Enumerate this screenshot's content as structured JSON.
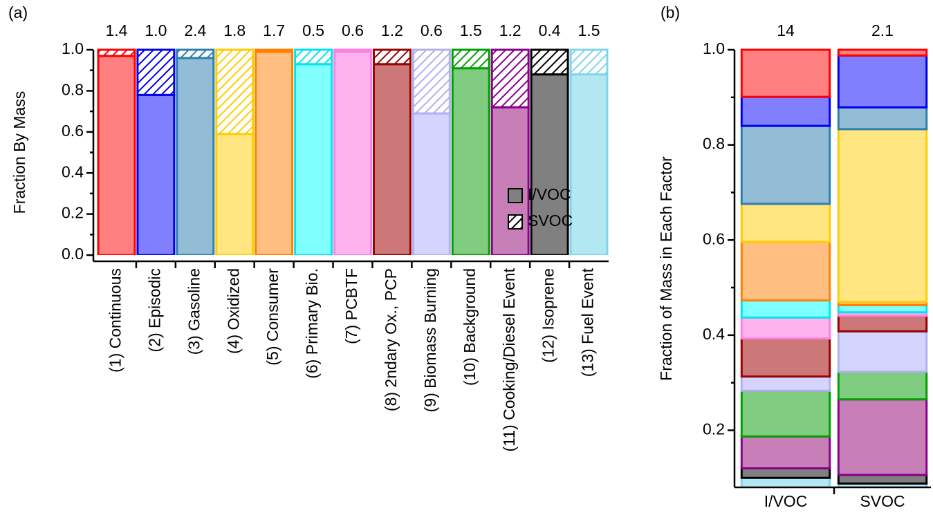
{
  "chart_data": [
    {
      "type": "bar",
      "stacked": true,
      "panel_label": "(a)",
      "ylabel": "Fraction By Mass",
      "categories": [
        "(1) Continuous",
        "(2) Episodic",
        "(3) Gasoline",
        "(4) Oxidized",
        "(5) Consumer",
        "(6) Primary Bio.",
        "(7) PCBTF",
        "(8) 2ndary Ox., PCP",
        "(9) Biomass Burning",
        "(10) Background",
        "(11) Cooking/Diesel Event",
        "(12) Isoprene",
        "(13) Fuel Event"
      ],
      "colors": [
        "#ff8080",
        "#8080ff",
        "#93bcd6",
        "#ffe680",
        "#ffbf80",
        "#80ffff",
        "#ffb3ee",
        "#cc7878",
        "#d4d4ff",
        "#80cc80",
        "#c87fb8",
        "#808080",
        "#b3e8f2"
      ],
      "edge_colors": [
        "#ff0000",
        "#0000ee",
        "#2e7fb0",
        "#ffcc00",
        "#ff8000",
        "#00e5ee",
        "#ff80e0",
        "#990000",
        "#b0b0f0",
        "#00a000",
        "#8b008b",
        "#000000",
        "#7fd4ea"
      ],
      "series": [
        {
          "name": "I/VOC",
          "fill": "solid",
          "color": "#808080",
          "values": [
            0.97,
            0.78,
            0.96,
            0.59,
            0.99,
            0.93,
            0.99,
            0.93,
            0.69,
            0.91,
            0.72,
            0.88,
            0.88
          ]
        },
        {
          "name": "SVOC",
          "fill": "hatch",
          "color": "#000000",
          "values": [
            0.03,
            0.22,
            0.04,
            0.41,
            0.01,
            0.07,
            0.01,
            0.07,
            0.31,
            0.09,
            0.28,
            0.12,
            0.12
          ]
        }
      ],
      "top_labels": [
        "1.4",
        "1.0",
        "2.4",
        "1.8",
        "1.7",
        "0.5",
        "0.6",
        "1.2",
        "0.6",
        "1.5",
        "1.2",
        "0.4",
        "1.5"
      ],
      "ylim": [
        0,
        1
      ],
      "yticks": [
        {
          "value": 0,
          "label": "0.0"
        },
        0.2,
        0.4,
        0.6,
        0.8,
        {
          "value": 1,
          "label": "1.0"
        }
      ],
      "legend": "right"
    },
    {
      "type": "bar",
      "stacked": true,
      "panel_label": "(b)",
      "ylabel": "Fraction of Mass in Each Factor",
      "categories": [
        "I/VOC",
        "SVOC"
      ],
      "series": [
        {
          "color": "#ff8080",
          "edge_color": "#ff0000",
          "values": [
            0.099,
            0.012
          ]
        },
        {
          "color": "#8080ff",
          "edge_color": "#0000ee",
          "values": [
            0.061,
            0.109
          ]
        },
        {
          "color": "#93bcd6",
          "edge_color": "#2e7fb0",
          "values": [
            0.164,
            0.046
          ]
        },
        {
          "color": "#ffe680",
          "edge_color": "#ffcc00",
          "values": [
            0.08,
            0.363
          ]
        },
        {
          "color": "#ffbf80",
          "edge_color": "#ff8000",
          "values": [
            0.123,
            0.007
          ]
        },
        {
          "color": "#80ffff",
          "edge_color": "#00e5ee",
          "values": [
            0.036,
            0.015
          ]
        },
        {
          "color": "#ffb3ee",
          "edge_color": "#ff80e0",
          "values": [
            0.044,
            0.007
          ]
        },
        {
          "color": "#cc7878",
          "edge_color": "#990000",
          "values": [
            0.08,
            0.033
          ]
        },
        {
          "color": "#d4d4ff",
          "edge_color": "#b0b0f0",
          "values": [
            0.03,
            0.085
          ]
        },
        {
          "color": "#80cc80",
          "edge_color": "#00a000",
          "values": [
            0.096,
            0.058
          ]
        },
        {
          "color": "#c87fb8",
          "edge_color": "#8b008b",
          "values": [
            0.067,
            0.159
          ]
        },
        {
          "color": "#808080",
          "edge_color": "#000000",
          "values": [
            0.02,
            0.018
          ]
        },
        {
          "color": "#b3e8f2",
          "edge_color": "#7fd4ea",
          "values": [
            0.1,
            0.088
          ]
        }
      ],
      "top_labels": [
        "14",
        "2.1"
      ],
      "ylim": [
        0.08,
        1
      ],
      "yticks": [
        0.2,
        0.4,
        0.6,
        0.8,
        {
          "value": 1,
          "label": "1.0"
        }
      ]
    }
  ]
}
